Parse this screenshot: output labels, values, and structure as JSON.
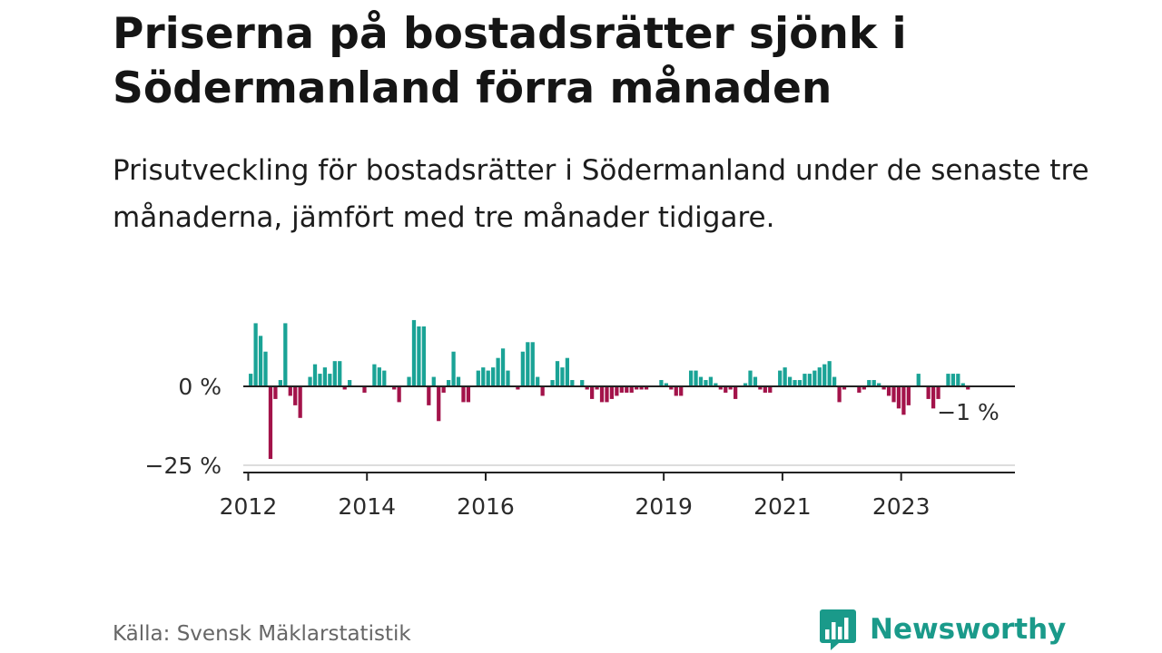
{
  "title": "Priserna på bostadsrätter sjönk i Södermanland förra månaden",
  "subtitle": "Prisutveckling för bostadsrätter i Södermanland under de senaste tre månaderna, jämfört med tre månader tidigare.",
  "source": "Källa: Svensk Mäklarstatistik",
  "logo_text": "Newsworthy",
  "colors": {
    "positive": "#1aa396",
    "negative": "#a3134a",
    "axis": "#222222",
    "grid": "#dddddd",
    "brand": "#1a9a8a"
  },
  "chart_data": {
    "type": "bar",
    "y_ticks": [
      {
        "value": 0,
        "label": "0 %"
      },
      {
        "value": -25,
        "label": "−25 %"
      }
    ],
    "ylim": [
      -27,
      22
    ],
    "x_ticks": [
      "2012",
      "2014",
      "2016",
      "2019",
      "2021",
      "2023"
    ],
    "xlim": [
      "2011-12",
      "2024-12"
    ],
    "last_label": "−1 %",
    "grid": "horizontal",
    "series": [
      {
        "start": "2012-01",
        "values": [
          4,
          20,
          16,
          11,
          -23,
          -4,
          2,
          20,
          -3,
          -6,
          -10,
          0,
          3,
          7,
          4,
          6,
          4,
          8,
          8,
          -1,
          2,
          0,
          0,
          -2,
          0,
          7,
          6,
          5,
          0,
          -1,
          -5,
          0,
          3,
          21,
          19,
          19,
          -6,
          3,
          -11,
          -2,
          2,
          11,
          3,
          -5,
          -5,
          0,
          5,
          6,
          5,
          6,
          9,
          12,
          5,
          0,
          -1,
          11,
          14,
          14,
          3,
          -3,
          0,
          2,
          8,
          6,
          9,
          2,
          0,
          2,
          -1,
          -4,
          -1,
          -5,
          -5,
          -4,
          -3,
          -2,
          -2,
          -2,
          -1,
          -1,
          -1,
          0,
          0,
          2,
          1,
          -1,
          -3,
          -3,
          0,
          5,
          5,
          3,
          2,
          3,
          1,
          -1,
          -2,
          -1,
          -4,
          0,
          1,
          5,
          3,
          -1,
          -2,
          -2,
          0,
          5,
          6,
          3,
          2,
          2,
          4,
          4,
          5,
          6,
          7,
          8,
          3,
          -5,
          -1,
          0,
          0,
          -2,
          -1,
          2,
          2,
          1,
          -1,
          -3,
          -5,
          -7,
          -9,
          -6,
          0,
          4,
          0,
          -4,
          -7,
          -4,
          0,
          4,
          4,
          4,
          1,
          -1
        ]
      }
    ]
  }
}
